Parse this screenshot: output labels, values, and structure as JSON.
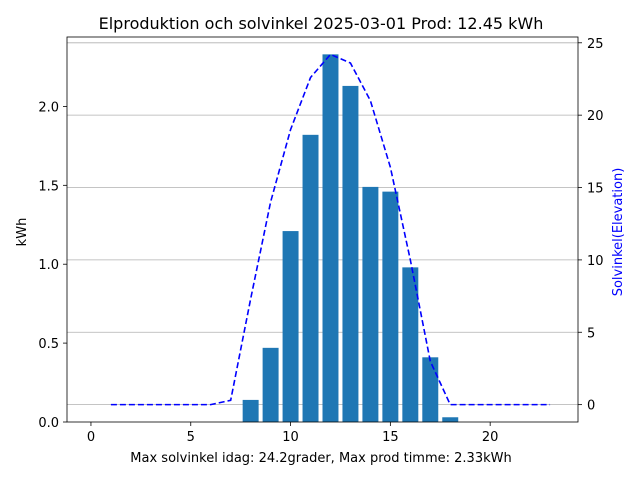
{
  "chart_data": {
    "type": "bar",
    "title": "Elproduktion och solvinkel 2025-03-01 Prod: 12.45 kWh",
    "xlabel": "Max solvinkel idag: 24.2grader, Max prod timme: 2.33kWh",
    "ylabel": "kWh",
    "y2label": "Solvinkel(Elevation)",
    "xlim": [
      -1.2,
      24.4
    ],
    "ylim": [
      0,
      2.44
    ],
    "y2lim": [
      -1.2,
      25.4
    ],
    "xticks": [
      0,
      5,
      10,
      15,
      20
    ],
    "yticks": [
      0.0,
      0.5,
      1.0,
      1.5,
      2.0
    ],
    "ytick_labels": [
      "0.0",
      "0.5",
      "1.0",
      "1.5",
      "2.0"
    ],
    "y2ticks": [
      0,
      5,
      10,
      15,
      20,
      25
    ],
    "grid": "horizontal lines on secondary axis",
    "series": [
      {
        "type": "bar",
        "color": "#1f77b4",
        "x": [
          8,
          9,
          10,
          11,
          12,
          13,
          14,
          15,
          16,
          17,
          18
        ],
        "values": [
          0.14,
          0.47,
          1.21,
          1.82,
          2.33,
          2.13,
          1.49,
          1.46,
          0.98,
          0.41,
          0.03
        ]
      },
      {
        "type": "line",
        "axis": "secondary",
        "style": "dashed",
        "color": "#0000ff",
        "x": [
          1,
          2,
          3,
          4,
          5,
          6,
          7,
          8,
          9,
          10,
          11,
          12,
          13,
          14,
          15,
          16,
          17,
          18,
          19,
          20,
          21,
          22,
          23
        ],
        "values": [
          0,
          0,
          0,
          0,
          0,
          0,
          0.3,
          7.3,
          14.0,
          19.0,
          22.6,
          24.2,
          23.6,
          21.0,
          16.4,
          10.0,
          3.0,
          0,
          0,
          0,
          0,
          0,
          0
        ]
      }
    ]
  }
}
